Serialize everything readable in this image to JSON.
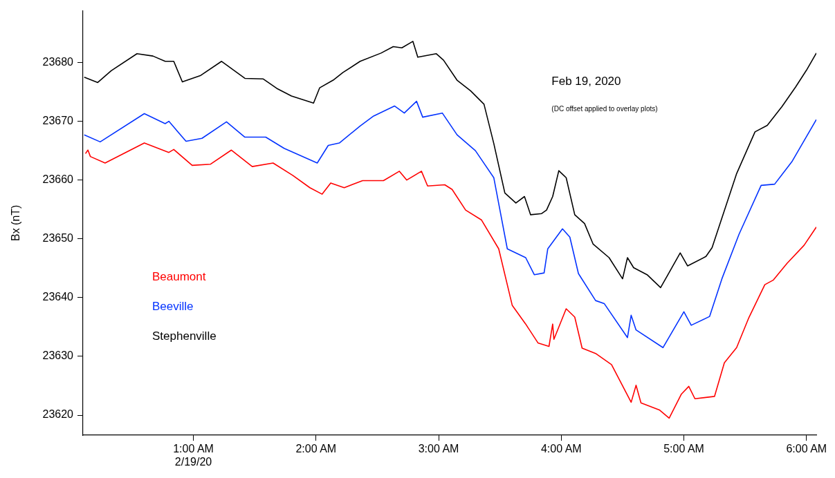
{
  "chart_data": {
    "type": "line",
    "title": "Feb 19, 2020",
    "annotations": [
      "(DC offset applied to overlay plots)"
    ],
    "ylabel": "Bx (nT)",
    "xlim": [
      0.1,
      6.08
    ],
    "xticks": [
      {
        "value": 1,
        "label": "1:00 AM\n2/19/20"
      },
      {
        "value": 2,
        "label": "2:00 AM"
      },
      {
        "value": 3,
        "label": "3:00 AM"
      },
      {
        "value": 4,
        "label": "4:00 AM"
      },
      {
        "value": 5,
        "label": "5:00 AM"
      },
      {
        "value": 6,
        "label": "6:00 AM"
      }
    ],
    "ylim": [
      23616.6,
      23688.8
    ],
    "yticks": [
      23620,
      23630,
      23640,
      23650,
      23660,
      23670,
      23680
    ],
    "grid": false,
    "legend": "left",
    "marker": "none",
    "line_style": "solid",
    "series": [
      {
        "name": "Beaumont",
        "color": "#ff0000",
        "x": [
          0.12,
          0.14,
          0.16,
          0.28,
          0.6,
          0.8,
          0.84,
          0.99,
          1.14,
          1.31,
          1.48,
          1.65,
          1.81,
          1.95,
          2.05,
          2.12,
          2.23,
          2.38,
          2.55,
          2.68,
          2.74,
          2.86,
          2.91,
          3.05,
          3.11,
          3.22,
          3.35,
          3.49,
          3.6,
          3.71,
          3.81,
          3.9,
          3.93,
          3.94,
          4.04,
          4.11,
          4.17,
          4.28,
          4.41,
          4.57,
          4.61,
          4.65,
          4.8,
          4.88,
          4.98,
          5.04,
          5.09,
          5.25,
          5.33,
          5.43,
          5.53,
          5.66,
          5.73,
          5.84,
          5.98,
          6.08
        ],
        "values": [
          23664.5,
          23665.1,
          23664.0,
          23662.9,
          23666.3,
          23664.7,
          23665.2,
          23662.5,
          23662.7,
          23665.1,
          23662.3,
          23662.9,
          23660.8,
          23658.7,
          23657.6,
          23659.5,
          23658.7,
          23659.9,
          23659.9,
          23661.5,
          23660.0,
          23661.5,
          23659.0,
          23659.2,
          23658.4,
          23654.9,
          23653.2,
          23648.3,
          23638.7,
          23635.5,
          23632.3,
          23631.7,
          23635.5,
          23632.9,
          23638.1,
          23636.7,
          23631.4,
          23630.5,
          23628.6,
          23622.2,
          23625.1,
          23622.1,
          23620.9,
          23619.5,
          23623.6,
          23624.9,
          23622.8,
          23623.2,
          23628.9,
          23631.5,
          23636.6,
          23642.2,
          23643.0,
          23645.8,
          23648.9,
          23652.0
        ]
      },
      {
        "name": "Beeville",
        "color": "#0433ff",
        "x": [
          0.11,
          0.24,
          0.6,
          0.77,
          0.8,
          0.94,
          1.07,
          1.27,
          1.42,
          1.59,
          1.74,
          2.01,
          2.1,
          2.19,
          2.36,
          2.47,
          2.64,
          2.72,
          2.82,
          2.87,
          3.03,
          3.15,
          3.3,
          3.45,
          3.5,
          3.56,
          3.71,
          3.78,
          3.86,
          3.89,
          4.01,
          4.07,
          4.14,
          4.28,
          4.35,
          4.54,
          4.57,
          4.61,
          4.83,
          5.0,
          5.06,
          5.21,
          5.31,
          5.45,
          5.63,
          5.74,
          5.88,
          6.08
        ],
        "values": [
          23667.7,
          23666.5,
          23671.3,
          23669.6,
          23670.0,
          23666.6,
          23667.1,
          23669.9,
          23667.3,
          23667.3,
          23665.4,
          23662.9,
          23665.9,
          23666.3,
          23669.2,
          23670.9,
          23672.6,
          23671.4,
          23673.4,
          23670.7,
          23671.4,
          23667.7,
          23665.0,
          23660.4,
          23654.9,
          23648.3,
          23646.8,
          23643.9,
          23644.2,
          23648.3,
          23651.7,
          23650.3,
          23644.1,
          23639.5,
          23639.0,
          23633.2,
          23637.0,
          23634.5,
          23631.5,
          23637.6,
          23635.3,
          23636.8,
          23643.2,
          23650.8,
          23659.1,
          23659.3,
          23663.1,
          23670.3
        ]
      },
      {
        "name": "Stephenville",
        "color": "#000000",
        "x": [
          0.11,
          0.22,
          0.33,
          0.54,
          0.67,
          0.77,
          0.84,
          0.91,
          1.06,
          1.23,
          1.42,
          1.57,
          1.68,
          1.8,
          1.98,
          2.03,
          2.14,
          2.22,
          2.36,
          2.53,
          2.63,
          2.7,
          2.79,
          2.83,
          2.98,
          3.04,
          3.15,
          3.26,
          3.37,
          3.45,
          3.54,
          3.63,
          3.7,
          3.75,
          3.84,
          3.88,
          3.93,
          3.98,
          4.04,
          4.11,
          4.19,
          4.26,
          4.39,
          4.5,
          4.54,
          4.59,
          4.7,
          4.81,
          4.87,
          4.97,
          5.03,
          5.18,
          5.23,
          5.43,
          5.58,
          5.68,
          5.8,
          5.91,
          6.0,
          6.08
        ],
        "values": [
          23677.5,
          23676.6,
          23678.6,
          23681.5,
          23681.1,
          23680.2,
          23680.2,
          23676.7,
          23677.8,
          23680.2,
          23677.3,
          23677.2,
          23675.6,
          23674.3,
          23673.1,
          23675.7,
          23677.0,
          23678.3,
          23680.2,
          23681.6,
          23682.7,
          23682.5,
          23683.6,
          23680.9,
          23681.5,
          23680.4,
          23677.0,
          23675.2,
          23672.9,
          23666.2,
          23657.8,
          23656.1,
          23657.2,
          23654.1,
          23654.3,
          23654.9,
          23657.2,
          23661.6,
          23660.4,
          23654.1,
          23652.6,
          23649.1,
          23646.8,
          23643.2,
          23646.8,
          23645.1,
          23643.9,
          23641.7,
          23643.9,
          23647.6,
          23645.4,
          23647.0,
          23648.5,
          23661.1,
          23668.2,
          23669.3,
          23672.5,
          23675.8,
          23678.7,
          23681.6
        ]
      }
    ]
  }
}
